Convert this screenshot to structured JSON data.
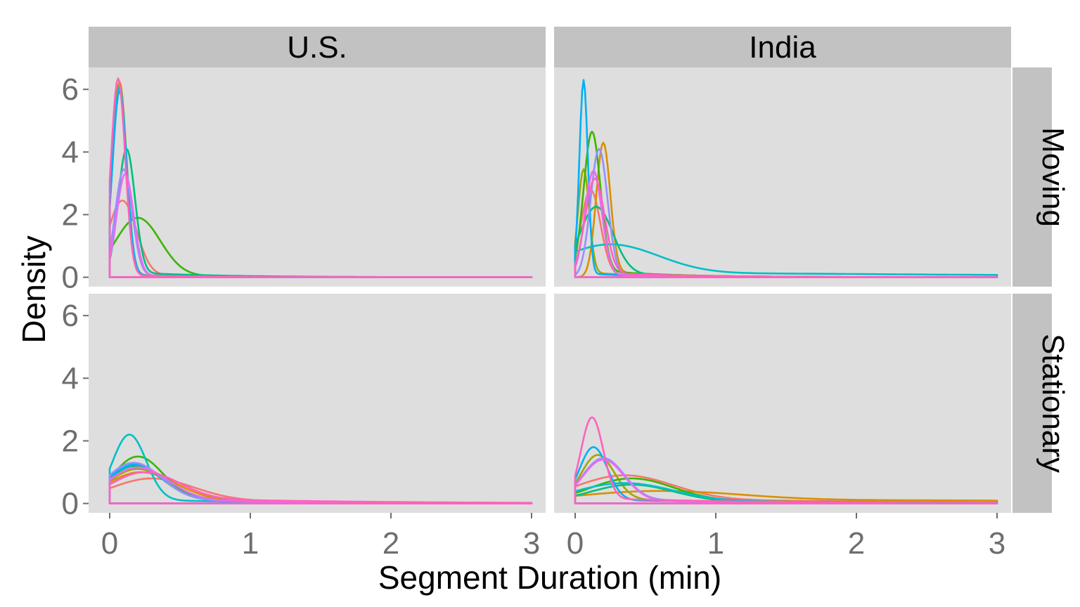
{
  "colors": {
    "panel_bg": "#dedede",
    "strip_bg": "#c2c2c2",
    "grid": "#ffffff",
    "tick_text": "#6e6e6e",
    "series": [
      "#F8766D",
      "#D89000",
      "#A3A500",
      "#39B600",
      "#00BF7D",
      "#00BFC4",
      "#00B0F6",
      "#9590FF",
      "#E76BF3",
      "#FF62BC"
    ]
  },
  "chart_data": {
    "type": "line",
    "kind": "faceted density plot",
    "xlabel": "Segment Duration (min)",
    "ylabel": "Density",
    "xlim": [
      -0.15,
      3.1
    ],
    "ylim": [
      -0.3,
      6.7
    ],
    "xticks": [
      "0",
      "1",
      "2",
      "3"
    ],
    "yticks": [
      "0",
      "2",
      "4",
      "6"
    ],
    "columns": [
      "U.S.",
      "India"
    ],
    "rows": [
      "Moving",
      "Stationary"
    ],
    "legend": "none",
    "grid": true,
    "panels": [
      {
        "column": "U.S.",
        "row": "Moving",
        "series": [
          {
            "color": "#F8766D",
            "peak": 2.45,
            "mode": 0.09,
            "width": 0.1,
            "tail": 0.12,
            "tail_decay": 0.5
          },
          {
            "color": "#D89000",
            "peak": 6.25,
            "mode": 0.07,
            "width": 0.05,
            "tail": 0.1,
            "tail_decay": 0.4
          },
          {
            "color": "#A3A500",
            "peak": 6.0,
            "mode": 0.07,
            "width": 0.05,
            "tail": 0.12,
            "tail_decay": 0.45
          },
          {
            "color": "#39B600",
            "peak": 1.9,
            "mode": 0.2,
            "width": 0.16,
            "tail": 0.1,
            "tail_decay": 0.7
          },
          {
            "color": "#00BF7D",
            "peak": 4.1,
            "mode": 0.12,
            "width": 0.06,
            "tail": 0.2,
            "tail_decay": 0.6
          },
          {
            "color": "#00BFC4",
            "peak": 6.1,
            "mode": 0.07,
            "width": 0.05,
            "tail": 0.1,
            "tail_decay": 0.4
          },
          {
            "color": "#00B0F6",
            "peak": 5.95,
            "mode": 0.07,
            "width": 0.05,
            "tail": 0.08,
            "tail_decay": 0.4
          },
          {
            "color": "#9590FF",
            "peak": 3.45,
            "mode": 0.1,
            "width": 0.06,
            "tail": 0.12,
            "tail_decay": 0.4
          },
          {
            "color": "#E76BF3",
            "peak": 3.3,
            "mode": 0.11,
            "width": 0.06,
            "tail": 0.1,
            "tail_decay": 0.4
          },
          {
            "color": "#FF62BC",
            "peak": 6.35,
            "mode": 0.06,
            "width": 0.05,
            "tail": 0.08,
            "tail_decay": 0.4
          }
        ]
      },
      {
        "column": "India",
        "row": "Moving",
        "series": [
          {
            "color": "#F8766D",
            "peak": 2.8,
            "mode": 0.11,
            "width": 0.07,
            "tail": 0.1,
            "tail_decay": 0.4
          },
          {
            "color": "#D89000",
            "peak": 4.3,
            "mode": 0.2,
            "width": 0.05,
            "tail": 0.3,
            "tail_decay": 0.5
          },
          {
            "color": "#A3A500",
            "peak": 3.45,
            "mode": 0.06,
            "width": 0.04,
            "tail": 0.2,
            "tail_decay": 0.4
          },
          {
            "color": "#39B600",
            "peak": 4.65,
            "mode": 0.12,
            "width": 0.06,
            "tail": 0.3,
            "tail_decay": 0.5
          },
          {
            "color": "#00BF7D",
            "peak": 2.25,
            "mode": 0.15,
            "width": 0.12,
            "tail": 0.2,
            "tail_decay": 0.6
          },
          {
            "color": "#00BFC4",
            "peak": 1.05,
            "mode": 0.25,
            "width": 0.35,
            "tail": 0.2,
            "tail_decay": 3.0
          },
          {
            "color": "#00B0F6",
            "peak": 6.3,
            "mode": 0.06,
            "width": 0.03,
            "tail": 0.15,
            "tail_decay": 0.4
          },
          {
            "color": "#9590FF",
            "peak": 4.1,
            "mode": 0.17,
            "width": 0.06,
            "tail": 0.15,
            "tail_decay": 0.4
          },
          {
            "color": "#E76BF3",
            "peak": 3.4,
            "mode": 0.13,
            "width": 0.06,
            "tail": 0.15,
            "tail_decay": 0.4
          },
          {
            "color": "#FF62BC",
            "peak": 3.15,
            "mode": 0.14,
            "width": 0.07,
            "tail": 0.2,
            "tail_decay": 0.6
          }
        ]
      },
      {
        "column": "U.S.",
        "row": "Stationary",
        "series": [
          {
            "color": "#F8766D",
            "peak": 0.8,
            "mode": 0.3,
            "width": 0.3,
            "tail": 0.2,
            "tail_decay": 1.2
          },
          {
            "color": "#D89000",
            "peak": 1.0,
            "mode": 0.22,
            "width": 0.25,
            "tail": 0.2,
            "tail_decay": 1.2
          },
          {
            "color": "#A3A500",
            "peak": 1.1,
            "mode": 0.2,
            "width": 0.22,
            "tail": 0.22,
            "tail_decay": 1.1
          },
          {
            "color": "#39B600",
            "peak": 1.5,
            "mode": 0.2,
            "width": 0.18,
            "tail": 0.25,
            "tail_decay": 1.0
          },
          {
            "color": "#00BF7D",
            "peak": 1.2,
            "mode": 0.18,
            "width": 0.2,
            "tail": 0.2,
            "tail_decay": 1.0
          },
          {
            "color": "#00BFC4",
            "peak": 2.2,
            "mode": 0.14,
            "width": 0.12,
            "tail": 0.15,
            "tail_decay": 1.0
          },
          {
            "color": "#00B0F6",
            "peak": 1.25,
            "mode": 0.18,
            "width": 0.2,
            "tail": 0.2,
            "tail_decay": 1.0
          },
          {
            "color": "#9590FF",
            "peak": 1.3,
            "mode": 0.17,
            "width": 0.2,
            "tail": 0.2,
            "tail_decay": 1.0
          },
          {
            "color": "#E76BF3",
            "peak": 1.15,
            "mode": 0.2,
            "width": 0.22,
            "tail": 0.2,
            "tail_decay": 1.0
          },
          {
            "color": "#FF62BC",
            "peak": 1.0,
            "mode": 0.25,
            "width": 0.25,
            "tail": 0.25,
            "tail_decay": 1.2
          }
        ]
      },
      {
        "column": "India",
        "row": "Stationary",
        "series": [
          {
            "color": "#F8766D",
            "peak": 0.9,
            "mode": 0.35,
            "width": 0.35,
            "tail": 0.25,
            "tail_decay": 1.5
          },
          {
            "color": "#D89000",
            "peak": 0.4,
            "mode": 0.6,
            "width": 0.6,
            "tail": 0.2,
            "tail_decay": 4.0
          },
          {
            "color": "#A3A500",
            "peak": 1.55,
            "mode": 0.16,
            "width": 0.12,
            "tail": 0.2,
            "tail_decay": 1.0
          },
          {
            "color": "#39B600",
            "peak": 0.8,
            "mode": 0.4,
            "width": 0.3,
            "tail": 0.2,
            "tail_decay": 1.2
          },
          {
            "color": "#00BF7D",
            "peak": 0.6,
            "mode": 0.4,
            "width": 0.3,
            "tail": 0.15,
            "tail_decay": 1.2
          },
          {
            "color": "#00BFC4",
            "peak": 0.65,
            "mode": 0.35,
            "width": 0.35,
            "tail": 0.15,
            "tail_decay": 1.5
          },
          {
            "color": "#00B0F6",
            "peak": 1.8,
            "mode": 0.13,
            "width": 0.1,
            "tail": 0.15,
            "tail_decay": 1.0
          },
          {
            "color": "#9590FF",
            "peak": 1.45,
            "mode": 0.2,
            "width": 0.15,
            "tail": 0.2,
            "tail_decay": 1.0
          },
          {
            "color": "#E76BF3",
            "peak": 1.4,
            "mode": 0.2,
            "width": 0.15,
            "tail": 0.15,
            "tail_decay": 1.0
          },
          {
            "color": "#FF62BC",
            "peak": 2.75,
            "mode": 0.12,
            "width": 0.08,
            "tail": 0.2,
            "tail_decay": 1.0
          }
        ]
      }
    ]
  }
}
